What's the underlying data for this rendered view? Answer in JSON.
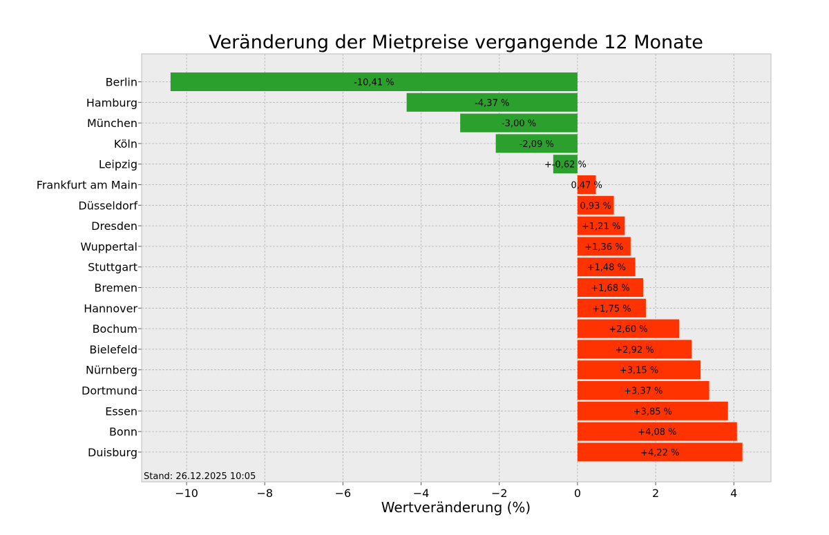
{
  "chart_data": {
    "type": "bar",
    "orientation": "horizontal",
    "title": "Veränderung der Mietpreise vergangende 12 Monate",
    "xlabel": "Wertveränderung (%)",
    "ylabel": "",
    "xlim": [
      -11.15,
      4.95
    ],
    "xticks": [
      -10,
      -8,
      -6,
      -4,
      -2,
      0,
      2,
      4
    ],
    "xtick_labels": [
      "−10",
      "−8",
      "−6",
      "−4",
      "−2",
      "0",
      "2",
      "4"
    ],
    "grid": true,
    "background_color": "#ececec",
    "positive_color": "#ff3300",
    "negative_color": "#2ca02c",
    "categories": [
      "Berlin",
      "Hamburg",
      "München",
      "Köln",
      "Leipzig",
      "Frankfurt am Main",
      "Düsseldorf",
      "Dresden",
      "Wuppertal",
      "Stuttgart",
      "Bremen",
      "Hannover",
      "Bochum",
      "Bielefeld",
      "Nürnberg",
      "Dortmund",
      "Essen",
      "Bonn",
      "Duisburg"
    ],
    "values": [
      -10.41,
      -4.37,
      -3.0,
      -2.09,
      -0.62,
      0.47,
      0.93,
      1.21,
      1.36,
      1.48,
      1.68,
      1.75,
      2.6,
      2.92,
      3.15,
      3.37,
      3.85,
      4.08,
      4.22
    ],
    "colors": [
      "#2ca02c",
      "#2ca02c",
      "#2ca02c",
      "#2ca02c",
      "#2ca02c",
      "#ff3300",
      "#ff3300",
      "#ff3300",
      "#ff3300",
      "#ff3300",
      "#ff3300",
      "#ff3300",
      "#ff3300",
      "#ff3300",
      "#ff3300",
      "#ff3300",
      "#ff3300",
      "#ff3300",
      "#ff3300"
    ],
    "data_labels": [
      "-10,41 %",
      "-4,37 %",
      "-3,00 %",
      "-2,09 %",
      "+-0,62 %",
      "0,47 %",
      "0,93 %",
      "+1,21 %",
      "+1,36 %",
      "+1,48 %",
      "+1,68 %",
      "+1,75 %",
      "+2,60 %",
      "+2,92 %",
      "+3,15 %",
      "+3,37 %",
      "+3,85 %",
      "+4,08 %",
      "+4,22 %"
    ],
    "footnote": "Stand: 26.12.2025 10:05"
  }
}
